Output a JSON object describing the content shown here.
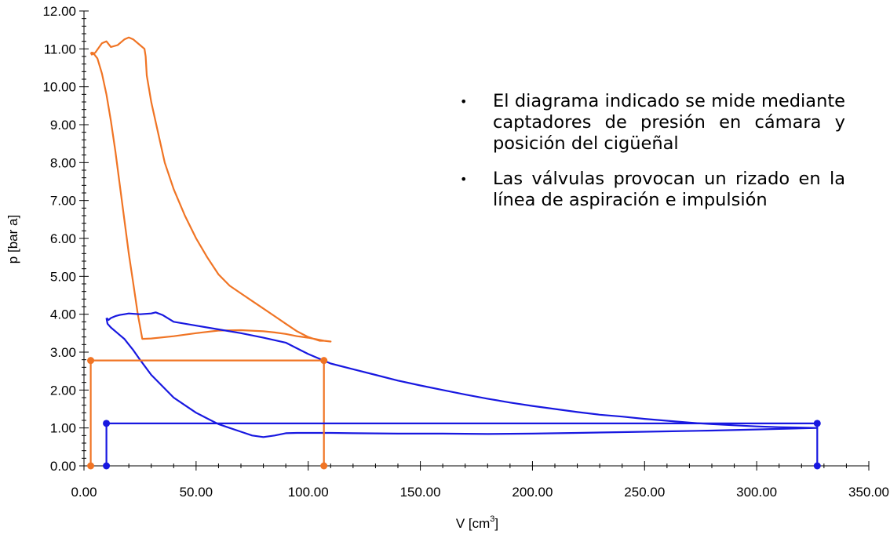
{
  "chart_data": {
    "type": "line",
    "xlabel": "V [cm",
    "xlabel_sup": "3",
    "xlabel_end": "]",
    "ylabel": "p [bar a]",
    "xlim": [
      0,
      350
    ],
    "ylim": [
      0,
      12
    ],
    "x_ticks": [
      "0.00",
      "50.00",
      "100.00",
      "150.00",
      "200.00",
      "250.00",
      "300.00",
      "350.00"
    ],
    "y_ticks": [
      "0.00",
      "1.00",
      "2.00",
      "3.00",
      "4.00",
      "5.00",
      "6.00",
      "7.00",
      "8.00",
      "9.00",
      "10.00",
      "11.00",
      "12.00"
    ],
    "grid": false,
    "colors": {
      "orange": "#f07424",
      "blue": "#1818e0"
    },
    "series": [
      {
        "color": "orange",
        "style": "curve",
        "x": [
          3,
          3.5,
          5,
          8,
          10,
          12,
          15,
          17,
          18,
          20,
          22,
          25,
          27,
          27.5,
          28,
          30,
          33,
          36,
          40,
          45,
          50,
          55,
          60,
          65,
          70,
          75,
          80,
          85,
          90,
          95,
          100,
          105,
          107,
          110,
          107,
          100,
          95,
          90,
          85,
          80,
          70,
          60,
          50,
          40,
          30,
          26,
          24,
          22,
          20,
          18,
          16,
          14,
          12,
          10,
          8,
          6,
          4,
          3
        ],
        "y": [
          10.9,
          10.85,
          10.9,
          11.15,
          11.2,
          11.05,
          11.1,
          11.2,
          11.25,
          11.3,
          11.25,
          11.1,
          11.0,
          10.8,
          10.3,
          9.6,
          8.8,
          8.0,
          7.3,
          6.6,
          6.0,
          5.5,
          5.05,
          4.75,
          4.55,
          4.35,
          4.15,
          3.95,
          3.75,
          3.55,
          3.4,
          3.3,
          3.3,
          3.28,
          3.3,
          3.38,
          3.42,
          3.48,
          3.52,
          3.55,
          3.58,
          3.57,
          3.5,
          3.42,
          3.36,
          3.35,
          4.0,
          4.8,
          5.6,
          6.5,
          7.4,
          8.3,
          9.1,
          9.8,
          10.35,
          10.75,
          10.9,
          10.9
        ]
      },
      {
        "color": "blue",
        "style": "curve",
        "x": [
          10,
          11,
          12,
          14,
          16,
          18,
          20,
          25,
          30,
          32,
          35,
          40,
          50,
          60,
          70,
          80,
          90,
          100,
          110,
          120,
          130,
          140,
          150,
          160,
          170,
          180,
          190,
          200,
          210,
          220,
          230,
          240,
          250,
          260,
          270,
          280,
          290,
          300,
          310,
          320,
          327,
          320,
          300,
          280,
          260,
          240,
          220,
          200,
          180,
          160,
          140,
          120,
          110,
          100,
          95,
          90,
          85,
          80,
          75,
          70,
          65,
          60,
          55,
          50,
          45,
          40,
          35,
          30,
          25,
          22,
          20,
          18,
          16,
          14,
          12,
          10.5,
          10
        ],
        "y": [
          3.9,
          3.85,
          3.9,
          3.95,
          3.98,
          4.0,
          4.02,
          4.0,
          4.02,
          4.05,
          3.98,
          3.8,
          3.7,
          3.6,
          3.5,
          3.38,
          3.25,
          2.95,
          2.7,
          2.55,
          2.4,
          2.25,
          2.12,
          2.0,
          1.88,
          1.77,
          1.67,
          1.58,
          1.5,
          1.42,
          1.35,
          1.3,
          1.24,
          1.19,
          1.14,
          1.1,
          1.07,
          1.04,
          1.02,
          1.01,
          1.0,
          0.99,
          0.96,
          0.93,
          0.91,
          0.89,
          0.87,
          0.85,
          0.84,
          0.85,
          0.85,
          0.86,
          0.87,
          0.87,
          0.87,
          0.86,
          0.8,
          0.76,
          0.8,
          0.9,
          1.0,
          1.1,
          1.25,
          1.4,
          1.6,
          1.8,
          2.1,
          2.4,
          2.8,
          3.05,
          3.2,
          3.35,
          3.45,
          3.55,
          3.65,
          3.75,
          3.9
        ]
      },
      {
        "color": "orange",
        "style": "frame",
        "x": [
          3,
          3,
          107,
          107
        ],
        "y": [
          0,
          2.78,
          2.78,
          0
        ]
      },
      {
        "color": "blue",
        "style": "frame",
        "x": [
          10,
          10,
          327,
          327
        ],
        "y": [
          0,
          1.12,
          1.12,
          0
        ]
      }
    ]
  },
  "notes": [
    "El diagrama indicado se mide mediante captadores de presión en cámara y posición del cigüeñal",
    "Las válvulas provocan un rizado en la línea de aspiración e impulsión"
  ],
  "bullet_char": "•"
}
